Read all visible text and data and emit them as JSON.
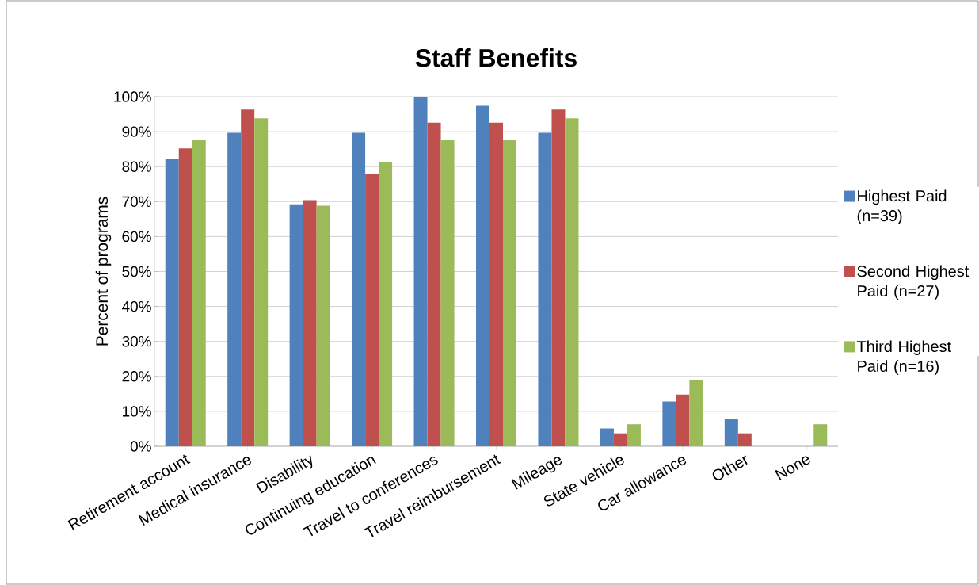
{
  "chart_data": {
    "type": "bar",
    "title": "Staff Benefits",
    "ylabel": "Percent of programs",
    "categories": [
      "Retirement account",
      "Medical insurance",
      "Disability",
      "Continuing education",
      "Travel to conferences",
      "Travel reimbursement",
      "Mileage",
      "State vehicle",
      "Car allowance",
      "Other",
      "None"
    ],
    "series": [
      {
        "name": "Highest Paid (n=39)",
        "color": "#4f81bd",
        "values": [
          82.1,
          89.7,
          69.2,
          89.7,
          100,
          97.4,
          89.7,
          5.1,
          12.8,
          7.7,
          0
        ]
      },
      {
        "name": "Second Highest Paid (n=27)",
        "color": "#c0504d",
        "values": [
          85.2,
          96.3,
          70.4,
          77.8,
          92.6,
          92.6,
          96.3,
          3.7,
          14.8,
          3.7,
          0
        ]
      },
      {
        "name": "Third Highest Paid (n=16)",
        "color": "#9bbb59",
        "values": [
          87.5,
          93.8,
          68.8,
          81.3,
          87.5,
          87.5,
          93.8,
          6.3,
          18.8,
          0,
          6.3
        ]
      }
    ],
    "ylim": [
      0,
      100
    ],
    "yticks": [
      {
        "value": 0,
        "label": "0%"
      },
      {
        "value": 10,
        "label": "10%"
      },
      {
        "value": 20,
        "label": "20%"
      },
      {
        "value": 30,
        "label": "30%"
      },
      {
        "value": 40,
        "label": "40%"
      },
      {
        "value": 50,
        "label": "50%"
      },
      {
        "value": 60,
        "label": "60%"
      },
      {
        "value": 70,
        "label": "70%"
      },
      {
        "value": 80,
        "label": "80%"
      },
      {
        "value": 90,
        "label": "90%"
      },
      {
        "value": 100,
        "label": "100%"
      }
    ],
    "grid": "y",
    "legend": "right"
  }
}
